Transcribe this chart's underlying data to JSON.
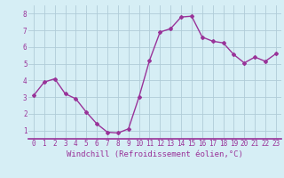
{
  "x": [
    0,
    1,
    2,
    3,
    4,
    5,
    6,
    7,
    8,
    9,
    10,
    11,
    12,
    13,
    14,
    15,
    16,
    17,
    18,
    19,
    20,
    21,
    22,
    23
  ],
  "y": [
    3.1,
    3.9,
    4.1,
    3.2,
    2.9,
    2.1,
    1.4,
    0.9,
    0.85,
    1.1,
    3.0,
    5.2,
    6.9,
    7.1,
    7.8,
    7.85,
    6.6,
    6.35,
    6.25,
    5.55,
    5.05,
    5.4,
    5.15,
    5.6
  ],
  "line_color": "#993399",
  "marker": "D",
  "marker_size": 2,
  "bg_color": "#d6eef5",
  "grid_color": "#b0ccd8",
  "xlabel": "Windchill (Refroidissement éolien,°C)",
  "xlabel_color": "#993399",
  "xlabel_fontsize": 6.5,
  "tick_color": "#993399",
  "tick_fontsize": 5.5,
  "ytick_labels": [
    "1",
    "2",
    "3",
    "4",
    "5",
    "6",
    "7",
    "8"
  ],
  "ytick_values": [
    1,
    2,
    3,
    4,
    5,
    6,
    7,
    8
  ],
  "xlim": [
    -0.5,
    23.5
  ],
  "ylim": [
    0.5,
    8.5
  ],
  "line_width": 1.0,
  "bottom_line_color": "#993399"
}
